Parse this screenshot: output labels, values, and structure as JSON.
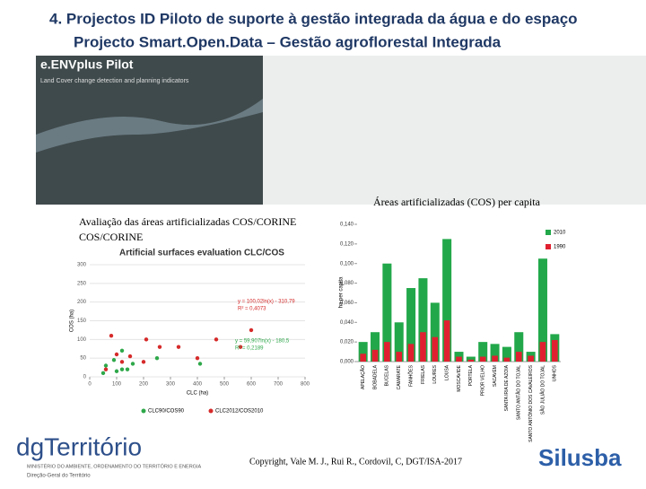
{
  "header": {
    "title": "4. Projectos ID Piloto de suporte à gestão integrada da água e do espaço",
    "subtitle": "Projecto Smart.Open.Data – Gestão agroflorestal Integrada"
  },
  "image": {
    "title": "e.ENVplus Pilot",
    "caption": "Land Cover change detection and planning indicators"
  },
  "captions": {
    "bar": "Áreas artificializadas (COS) per capita",
    "scatter": "Avaliação das áreas artificializadas COS/CORINE"
  },
  "chart_data": [
    {
      "type": "scatter",
      "title": "Artificial surfaces evaluation CLC/COS",
      "x_label": "CLC (ha)",
      "y_label": "COS (ha)",
      "xlim": [
        0,
        800
      ],
      "xticks": [
        0,
        100,
        200,
        300,
        400,
        500,
        600,
        700,
        800
      ],
      "ylim": [
        0,
        300
      ],
      "yticks": [
        0,
        50,
        100,
        150,
        200,
        250,
        300
      ],
      "series": [
        {
          "name": "CLC90/COS90",
          "color": "#2ea84a",
          "x": [
            50,
            60,
            90,
            100,
            120,
            120,
            140,
            160,
            250,
            410
          ],
          "values": [
            10,
            30,
            45,
            15,
            20,
            70,
            20,
            35,
            50,
            35
          ]
        },
        {
          "name": "CLC2012/COS2010",
          "color": "#d62a2a",
          "x": [
            60,
            80,
            100,
            120,
            150,
            200,
            210,
            260,
            330,
            400,
            470,
            560,
            600
          ],
          "values": [
            20,
            110,
            60,
            40,
            55,
            40,
            100,
            80,
            80,
            50,
            100,
            80,
            125
          ]
        }
      ],
      "annotations": [
        "y = 100,02ln(x) - 310,79",
        "R² = 0,4073",
        "y = 59,907ln(x) - 180,5",
        "R² = 0,2189"
      ]
    },
    {
      "type": "bar",
      "y_label": "ha per capita",
      "categories": [
        "APELAÇÃO",
        "BOBADELA",
        "BUCELAS",
        "CAMARATE",
        "FANHÕES",
        "FRIELAS",
        "LOURES",
        "LOUSA",
        "MOSCAVIDE",
        "PORTELA",
        "PRIOR VELHO",
        "SACAVÉM",
        "SANTA IRIA DE AZOIA",
        "SANTO ANTÃO DO TOJAL",
        "SANTO ANTÓNIO DOS CAVALEIROS",
        "SÃO JULIÃO DO TOJAL",
        "UNHOS"
      ],
      "ylim": [
        0,
        0.14
      ],
      "yticks": [
        {
          "value": 0,
          "label": "0,000"
        },
        {
          "value": 0.02,
          "label": "0,020"
        },
        {
          "value": 0.04,
          "label": "0,040"
        },
        {
          "value": 0.06,
          "label": "0,060"
        },
        {
          "value": 0.08,
          "label": "0,080"
        },
        {
          "value": 0.1,
          "label": "0,100"
        },
        {
          "value": 0.12,
          "label": "0,120"
        },
        {
          "value": 0.14,
          "label": "0,140"
        }
      ],
      "series": [
        {
          "name": "2010",
          "color": "#22a84a",
          "values": [
            0.02,
            0.03,
            0.1,
            0.04,
            0.075,
            0.085,
            0.06,
            0.125,
            0.01,
            0.005,
            0.02,
            0.018,
            0.015,
            0.03,
            0.01,
            0.105,
            0.028
          ]
        },
        {
          "name": "1990",
          "color": "#e02030",
          "values": [
            0.008,
            0.012,
            0.02,
            0.01,
            0.018,
            0.03,
            0.025,
            0.042,
            0.005,
            0.002,
            0.005,
            0.006,
            0.004,
            0.01,
            0.006,
            0.02,
            0.022
          ]
        }
      ]
    }
  ],
  "footer": {
    "copyright": "Copyright, Vale M. J., Rui R., Cordovil, C, DGT/ISA-2017",
    "logo": "dgTerritório",
    "ministry": "MINISTÉRIO DO AMBIENTE, ORDENAMENTO DO TERRITÓRIO E ENERGIA",
    "directorate": "Direção-Geral do Território",
    "partner": "Silusba"
  }
}
